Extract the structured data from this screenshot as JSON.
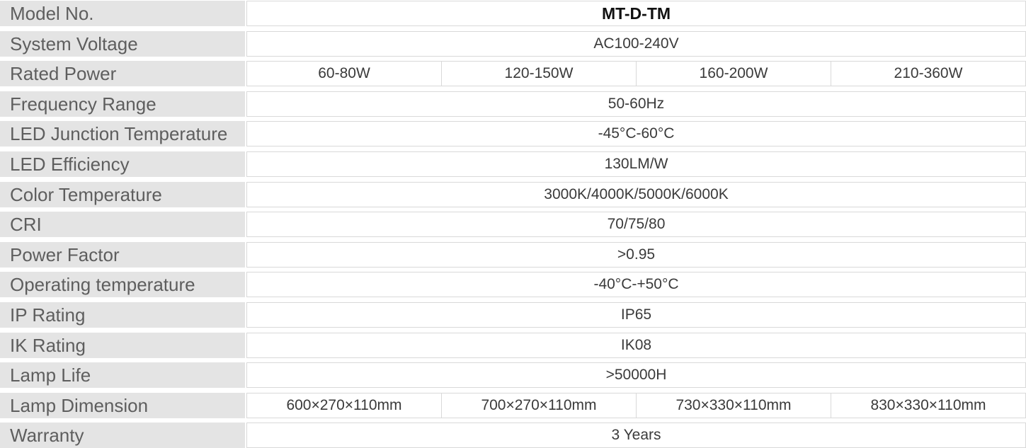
{
  "rows": [
    {
      "label": "Model No.",
      "values": [
        "MT-D-TM"
      ],
      "bold": true
    },
    {
      "label": "System Voltage",
      "values": [
        "AC100-240V"
      ]
    },
    {
      "label": "Rated Power",
      "values": [
        "60-80W",
        "120-150W",
        "160-200W",
        "210-360W"
      ]
    },
    {
      "label": "Frequency Range",
      "values": [
        "50-60Hz"
      ]
    },
    {
      "label": "LED Junction Temperature",
      "values": [
        "-45°C-60°C"
      ]
    },
    {
      "label": "LED Efficiency",
      "values": [
        "130LM/W"
      ]
    },
    {
      "label": "Color Temperature",
      "values": [
        "3000K/4000K/5000K/6000K"
      ]
    },
    {
      "label": "CRI",
      "values": [
        "70/75/80"
      ]
    },
    {
      "label": "Power Factor",
      "values": [
        ">0.95"
      ]
    },
    {
      "label": "Operating temperature",
      "values": [
        "-40°C-+50°C"
      ]
    },
    {
      "label": "IP Rating",
      "values": [
        "IP65"
      ]
    },
    {
      "label": "IK Rating",
      "values": [
        "IK08"
      ]
    },
    {
      "label": "Lamp Life",
      "values": [
        ">50000H"
      ]
    },
    {
      "label": "Lamp Dimension",
      "values": [
        "600×270×110mm",
        "700×270×110mm",
        "730×330×110mm",
        "830×330×110mm"
      ]
    },
    {
      "label": "Warranty",
      "values": [
        "3 Years"
      ]
    }
  ]
}
